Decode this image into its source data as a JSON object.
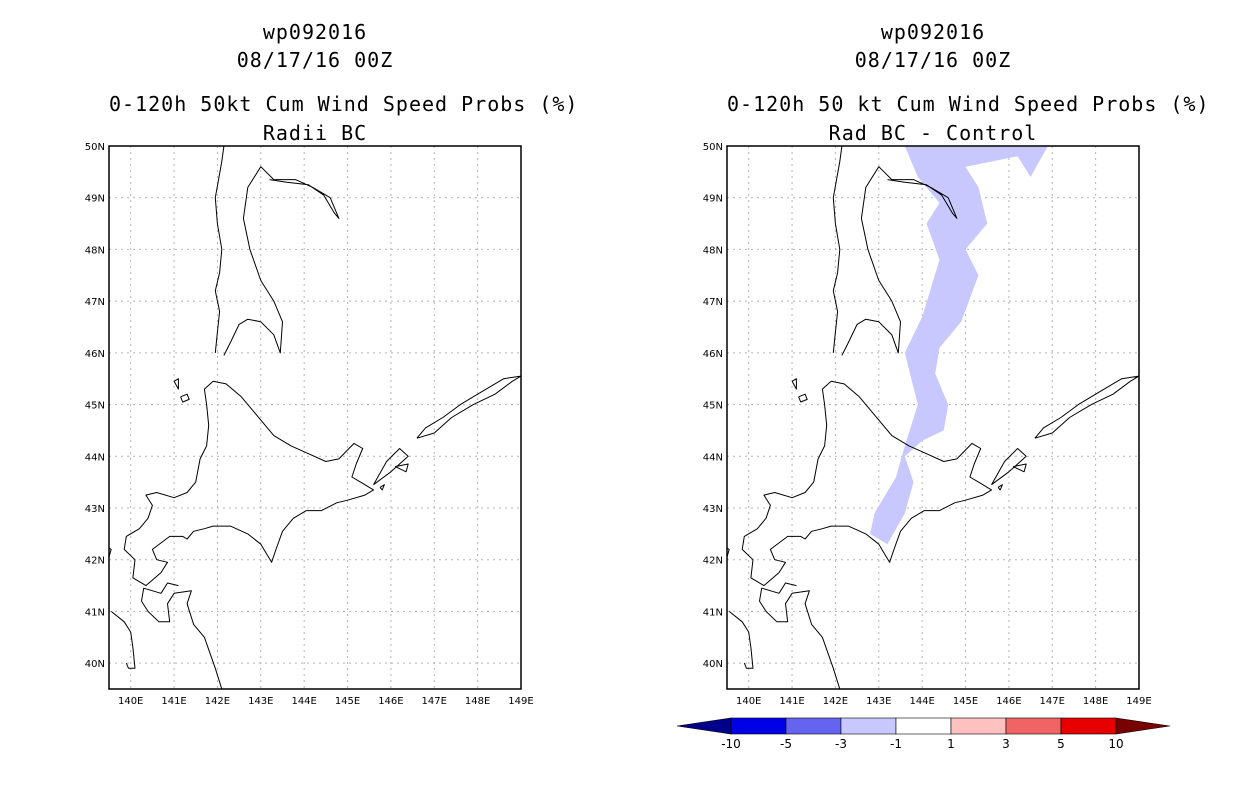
{
  "left_panel": {
    "title_storm": "wp092016",
    "title_date": "08/17/16 00Z",
    "title_product": "0-120h 50kt Cum Wind Speed Probs (%)",
    "title_sub": "Radii BC"
  },
  "right_panel": {
    "title_storm": "wp092016",
    "title_date": "08/17/16 00Z",
    "title_product": "0-120h 50 kt Cum Wind Speed Probs (%)",
    "title_sub": "Rad BC - Control"
  },
  "chart_data": [
    {
      "type": "map",
      "title": "Radii BC",
      "lon_range": [
        139.5,
        149
      ],
      "lat_range": [
        39.5,
        50
      ],
      "xticks": [
        "140E",
        "141E",
        "142E",
        "143E",
        "144E",
        "145E",
        "146E",
        "147E",
        "148E",
        "149E"
      ],
      "yticks": [
        "40N",
        "41N",
        "42N",
        "43N",
        "44N",
        "45N",
        "46N",
        "47N",
        "48N",
        "49N",
        "50N"
      ],
      "grid": true,
      "shaded_regions": []
    },
    {
      "type": "map",
      "title": "Rad BC - Control",
      "lon_range": [
        139.5,
        149
      ],
      "lat_range": [
        39.5,
        50
      ],
      "xticks": [
        "140E",
        "141E",
        "142E",
        "143E",
        "144E",
        "145E",
        "146E",
        "147E",
        "148E",
        "149E"
      ],
      "yticks": [
        "40N",
        "41N",
        "42N",
        "43N",
        "44N",
        "45N",
        "46N",
        "47N",
        "48N",
        "49N",
        "50N"
      ],
      "grid": true,
      "shaded_regions": [
        {
          "category": "-3 to -1",
          "color": "#c8c8ff",
          "polygon_lonlat": [
            [
              143.2,
              42.3
            ],
            [
              143.6,
              42.9
            ],
            [
              143.8,
              43.5
            ],
            [
              143.6,
              44.0
            ],
            [
              144.0,
              44.3
            ],
            [
              144.5,
              44.5
            ],
            [
              144.6,
              45.0
            ],
            [
              144.3,
              45.6
            ],
            [
              144.4,
              46.1
            ],
            [
              144.9,
              46.6
            ],
            [
              145.3,
              47.5
            ],
            [
              145.0,
              48.0
            ],
            [
              145.5,
              48.5
            ],
            [
              145.3,
              49.2
            ],
            [
              145.0,
              49.6
            ],
            [
              146.2,
              49.8
            ],
            [
              146.5,
              49.4
            ],
            [
              146.9,
              50.0
            ],
            [
              143.6,
              50.0
            ],
            [
              143.9,
              49.4
            ],
            [
              144.4,
              48.9
            ],
            [
              144.1,
              48.5
            ],
            [
              144.4,
              47.8
            ],
            [
              144.0,
              46.7
            ],
            [
              143.6,
              46.0
            ],
            [
              143.9,
              45.0
            ],
            [
              143.6,
              44.2
            ],
            [
              143.4,
              43.6
            ],
            [
              142.9,
              42.9
            ],
            [
              142.8,
              42.5
            ]
          ]
        }
      ],
      "colorbar": {
        "labels": [
          "-10",
          "-5",
          "-3",
          "-1",
          "1",
          "3",
          "5",
          "10"
        ],
        "colors": [
          "#00008c",
          "#0000e6",
          "#6464f0",
          "#c8c8ff",
          "#ffffff",
          "#ffc0c0",
          "#f06464",
          "#e60000",
          "#780000"
        ]
      }
    }
  ]
}
